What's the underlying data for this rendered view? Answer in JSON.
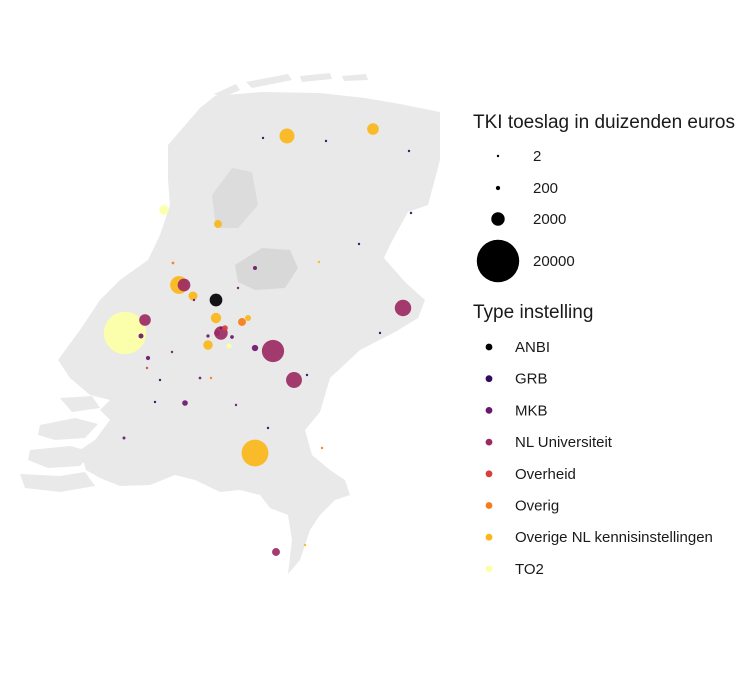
{
  "map": {
    "background": "#ffffff",
    "land_color": "#e9e9e9",
    "water_color": "#dcdcdc"
  },
  "legend_size": {
    "title": "TKI toeslag in duizenden euros",
    "entries": [
      {
        "label": "2",
        "value": 2
      },
      {
        "label": "200",
        "value": 200
      },
      {
        "label": "2000",
        "value": 2000
      },
      {
        "label": "20000",
        "value": 20000
      }
    ]
  },
  "legend_type": {
    "title": "Type instelling",
    "entries": [
      {
        "key": "anbi",
        "label": "ANBI",
        "color": "#000004"
      },
      {
        "key": "grb",
        "label": "GRB",
        "color": "#320a5e"
      },
      {
        "key": "mkb",
        "label": "MKB",
        "color": "#6a176e"
      },
      {
        "key": "uni",
        "label": "NL Universiteit",
        "color": "#9c2a62"
      },
      {
        "key": "overheid",
        "label": "Overheid",
        "color": "#d54139"
      },
      {
        "key": "overig",
        "label": "Overig",
        "color": "#f57d15"
      },
      {
        "key": "kennis",
        "label": "Overige NL kennisinstellingen",
        "color": "#fbb61a"
      },
      {
        "key": "to2",
        "label": "TO2",
        "color": "#fcffa4"
      }
    ]
  },
  "points": [
    {
      "type": "to2",
      "value": 20000
    },
    {
      "type": "kennis",
      "value": 8000
    },
    {
      "type": "kennis",
      "value": 3500
    },
    {
      "type": "uni",
      "value": 5500
    },
    {
      "type": "uni",
      "value": 3000
    },
    {
      "type": "uni",
      "value": 2800
    },
    {
      "type": "uni",
      "value": 2000
    },
    {
      "type": "uni",
      "value": 1800
    },
    {
      "type": "uni",
      "value": 1500
    },
    {
      "type": "kennis",
      "value": 2500
    },
    {
      "type": "kennis",
      "value": 1500
    },
    {
      "type": "kennis",
      "value": 1200
    },
    {
      "type": "kennis",
      "value": 900
    },
    {
      "type": "kennis",
      "value": 1000
    },
    {
      "type": "kennis",
      "value": 700
    },
    {
      "type": "kennis",
      "value": 400
    },
    {
      "type": "to2",
      "value": 1000
    },
    {
      "type": "to2",
      "value": 300
    },
    {
      "type": "anbi",
      "value": 1800
    },
    {
      "type": "overig",
      "value": 700
    },
    {
      "type": "overheid",
      "value": 350
    },
    {
      "type": "uni",
      "value": 700
    },
    {
      "type": "uni",
      "value": 400
    },
    {
      "type": "mkb",
      "value": 450
    },
    {
      "type": "mkb",
      "value": 350
    },
    {
      "type": "mkb",
      "value": 280
    },
    {
      "type": "mkb",
      "value": 200
    },
    {
      "type": "mkb",
      "value": 180
    },
    {
      "type": "mkb",
      "value": 150
    },
    {
      "type": "mkb",
      "value": 120
    },
    {
      "type": "mkb",
      "value": 100
    },
    {
      "type": "mkb",
      "value": 80
    },
    {
      "type": "mkb",
      "value": 60
    },
    {
      "type": "mkb",
      "value": 50
    },
    {
      "type": "mkb",
      "value": 40
    },
    {
      "type": "mkb",
      "value": 30
    },
    {
      "type": "mkb",
      "value": 20
    },
    {
      "type": "grb",
      "value": 40
    },
    {
      "type": "grb",
      "value": 30
    },
    {
      "type": "grb",
      "value": 20
    },
    {
      "type": "grb",
      "value": 15
    },
    {
      "type": "grb",
      "value": 10
    },
    {
      "type": "grb",
      "value": 8
    },
    {
      "type": "grb",
      "value": 6
    },
    {
      "type": "grb",
      "value": 5
    },
    {
      "type": "grb",
      "value": 4
    },
    {
      "type": "grb",
      "value": 3
    },
    {
      "type": "overig",
      "value": 80
    },
    {
      "type": "overig",
      "value": 50
    },
    {
      "type": "overig",
      "value": 30
    },
    {
      "type": "kennis",
      "value": 60
    },
    {
      "type": "kennis",
      "value": 30
    },
    {
      "type": "overheid",
      "value": 40
    }
  ]
}
